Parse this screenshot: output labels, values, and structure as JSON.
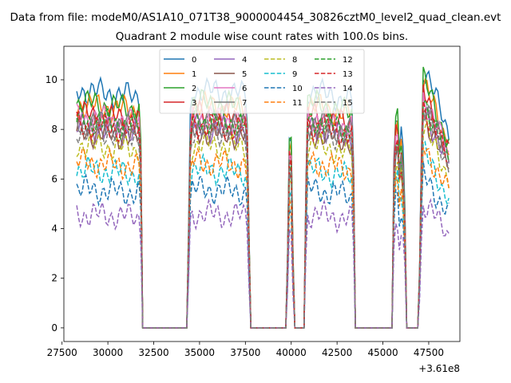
{
  "figure": {
    "suptitle": "Data from file: modeM0/AS1A10_071T38_9000004454_30826cztM0_level2_quad_clean.evt",
    "title": "Quadrant 2 module wise count rates with 100.0s bins.",
    "offset_label": "+3.61e8"
  },
  "chart_data": {
    "type": "line",
    "title": "Quadrant 2 module wise count rates with 100.0s bins.",
    "xlabel": "",
    "ylabel": "",
    "x_offset": 361000000,
    "xlim": [
      27600,
      49200
    ],
    "ylim": [
      -0.55,
      11.35
    ],
    "grid": false,
    "legend_position": "top-center",
    "legend_columns": 4,
    "xticks": [
      27500,
      30000,
      32500,
      35000,
      37500,
      40000,
      42500,
      45000,
      47500
    ],
    "xtick_labels": [
      "27500",
      "30000",
      "32500",
      "35000",
      "37500",
      "40000",
      "42500",
      "45000",
      "47500"
    ],
    "yticks": [
      0,
      2,
      4,
      6,
      8,
      10
    ],
    "ytick_labels": [
      "0",
      "2",
      "4",
      "6",
      "8",
      "10"
    ],
    "time_profile": [
      [
        28300,
        1.0
      ],
      [
        31700,
        0.97
      ],
      [
        31800,
        0.8
      ],
      [
        31900,
        0.0
      ],
      [
        34350,
        0.0
      ],
      [
        34450,
        0.8
      ],
      [
        34550,
        1.0
      ],
      [
        37550,
        0.98
      ],
      [
        37650,
        0.8
      ],
      [
        37750,
        0.0
      ],
      [
        39750,
        0.0
      ],
      [
        39850,
        0.6
      ],
      [
        39950,
        1.0
      ],
      [
        40050,
        0.6
      ],
      [
        40150,
        0.0
      ],
      [
        40700,
        0.0
      ],
      [
        40800,
        0.6
      ],
      [
        40900,
        1.0
      ],
      [
        43300,
        0.95
      ],
      [
        43400,
        0.7
      ],
      [
        43500,
        0.0
      ],
      [
        45500,
        0.0
      ],
      [
        45600,
        0.7
      ],
      [
        45750,
        1.0
      ],
      [
        45900,
        0.75
      ],
      [
        46050,
        0.85
      ],
      [
        46200,
        0.5
      ],
      [
        46300,
        0.0
      ],
      [
        46950,
        0.0
      ],
      [
        47100,
        0.75
      ],
      [
        47200,
        1.1
      ],
      [
        48600,
        0.82
      ],
      [
        48650,
        0.3
      ]
    ],
    "series": [
      {
        "name": "0",
        "level": 9.6,
        "color": "#1f77b4",
        "dash": "solid"
      },
      {
        "name": "1",
        "level": 9.0,
        "color": "#ff7f0e",
        "dash": "solid"
      },
      {
        "name": "2",
        "level": 9.1,
        "color": "#2ca02c",
        "dash": "solid"
      },
      {
        "name": "3",
        "level": 8.6,
        "color": "#d62728",
        "dash": "solid"
      },
      {
        "name": "4",
        "level": 8.1,
        "color": "#9467bd",
        "dash": "solid"
      },
      {
        "name": "5",
        "level": 7.9,
        "color": "#8c564b",
        "dash": "solid"
      },
      {
        "name": "6",
        "level": 8.5,
        "color": "#e377c2",
        "dash": "solid"
      },
      {
        "name": "7",
        "level": 8.3,
        "color": "#7f7f7f",
        "dash": "solid"
      },
      {
        "name": "8",
        "level": 7.4,
        "color": "#bcbd22",
        "dash": "dashed"
      },
      {
        "name": "9",
        "level": 6.4,
        "color": "#17becf",
        "dash": "dashed"
      },
      {
        "name": "10",
        "level": 5.6,
        "color": "#1f77b4",
        "dash": "dashed"
      },
      {
        "name": "11",
        "level": 6.7,
        "color": "#ff7f0e",
        "dash": "dashed"
      },
      {
        "name": "12",
        "level": 8.4,
        "color": "#2ca02c",
        "dash": "dashed"
      },
      {
        "name": "13",
        "level": 8.2,
        "color": "#d62728",
        "dash": "dashed"
      },
      {
        "name": "14",
        "level": 4.6,
        "color": "#9467bd",
        "dash": "dashed"
      },
      {
        "name": "15",
        "level": 8.0,
        "color": "#7f7f7f",
        "dash": "dashed"
      }
    ]
  }
}
